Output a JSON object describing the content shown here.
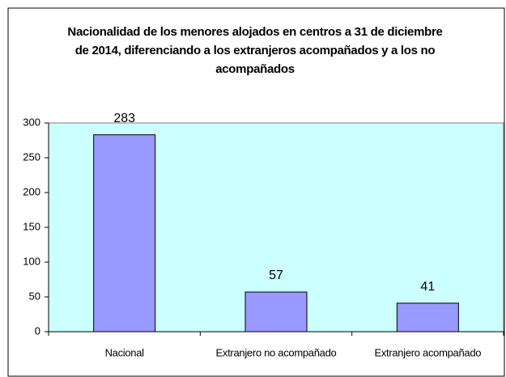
{
  "chart_data": {
    "type": "bar",
    "title": "Nacionalidad de los menores alojados en centros a 31 de diciembre de 2014, diferenciando a los extranjeros acompañados y a los no acompañados",
    "categories": [
      "Nacional",
      "Extranjero no acompañado",
      "Extranjero acompañado"
    ],
    "values": [
      283,
      57,
      41
    ],
    "color": "#9999ff",
    "ylim": [
      0,
      300
    ],
    "yticks": [
      0,
      50,
      100,
      150,
      200,
      250,
      300
    ],
    "grid": false
  }
}
